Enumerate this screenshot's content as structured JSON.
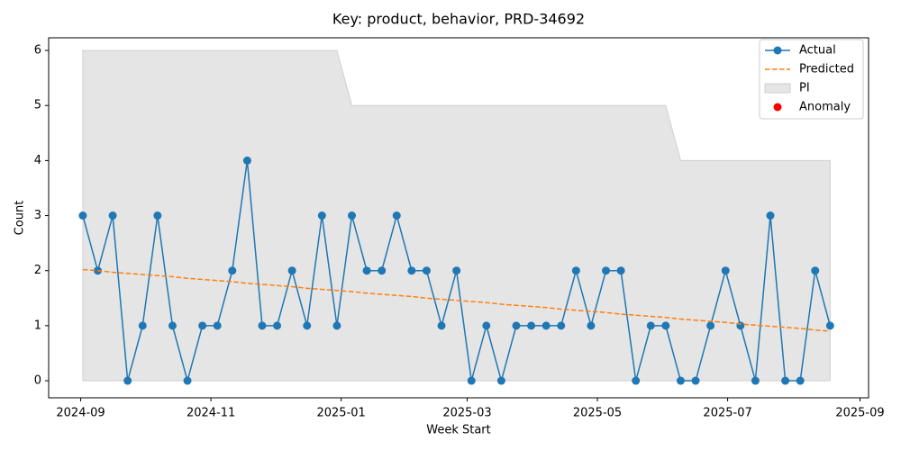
{
  "chart_data": {
    "type": "line",
    "title": "Key: product, behavior, PRD-34692",
    "xlabel": "Week Start",
    "ylabel": "Count",
    "x": [
      "2024-09-02",
      "2024-09-09",
      "2024-09-16",
      "2024-09-23",
      "2024-09-30",
      "2024-10-07",
      "2024-10-14",
      "2024-10-21",
      "2024-10-28",
      "2024-11-04",
      "2024-11-11",
      "2024-11-18",
      "2024-11-25",
      "2024-12-02",
      "2024-12-09",
      "2024-12-16",
      "2024-12-23",
      "2024-12-30",
      "2025-01-06",
      "2025-01-13",
      "2025-01-20",
      "2025-01-27",
      "2025-02-03",
      "2025-02-10",
      "2025-02-17",
      "2025-02-24",
      "2025-03-03",
      "2025-03-10",
      "2025-03-17",
      "2025-03-24",
      "2025-03-31",
      "2025-04-07",
      "2025-04-14",
      "2025-04-21",
      "2025-04-28",
      "2025-05-05",
      "2025-05-12",
      "2025-05-19",
      "2025-05-26",
      "2025-06-02",
      "2025-06-09",
      "2025-06-16",
      "2025-06-23",
      "2025-06-30",
      "2025-07-07",
      "2025-07-14",
      "2025-07-21",
      "2025-07-28",
      "2025-08-04",
      "2025-08-11",
      "2025-08-18"
    ],
    "series": [
      {
        "name": "Actual",
        "color": "#1f77b4",
        "style": "solid",
        "marker": true,
        "values": [
          3,
          2,
          3,
          0,
          1,
          3,
          1,
          0,
          1,
          1,
          2,
          4,
          1,
          1,
          2,
          1,
          3,
          1,
          3,
          2,
          2,
          3,
          2,
          2,
          1,
          2,
          0,
          1,
          0,
          1,
          1,
          1,
          1,
          2,
          1,
          2,
          2,
          0,
          1,
          1,
          0,
          0,
          1,
          2,
          1,
          0,
          3,
          0,
          0,
          2,
          1
        ]
      },
      {
        "name": "Predicted",
        "color": "#ff7f0e",
        "style": "dashed",
        "marker": false,
        "values": [
          2.02,
          2.0,
          1.97,
          1.95,
          1.93,
          1.91,
          1.89,
          1.86,
          1.84,
          1.82,
          1.8,
          1.77,
          1.75,
          1.73,
          1.71,
          1.68,
          1.66,
          1.64,
          1.62,
          1.59,
          1.57,
          1.55,
          1.53,
          1.5,
          1.48,
          1.46,
          1.44,
          1.42,
          1.39,
          1.37,
          1.35,
          1.33,
          1.3,
          1.28,
          1.26,
          1.24,
          1.21,
          1.19,
          1.17,
          1.15,
          1.12,
          1.1,
          1.08,
          1.06,
          1.03,
          1.01,
          0.99,
          0.97,
          0.95,
          0.92,
          0.9
        ]
      },
      {
        "name": "PI",
        "color": "#e5e5e5",
        "style": "band",
        "lower": [
          0,
          0,
          0,
          0,
          0,
          0,
          0,
          0,
          0,
          0,
          0,
          0,
          0,
          0,
          0,
          0,
          0,
          0,
          0,
          0,
          0,
          0,
          0,
          0,
          0,
          0,
          0,
          0,
          0,
          0,
          0,
          0,
          0,
          0,
          0,
          0,
          0,
          0,
          0,
          0,
          0,
          0,
          0,
          0,
          0,
          0,
          0,
          0,
          0,
          0,
          0
        ],
        "upper": [
          6,
          6,
          6,
          6,
          6,
          6,
          6,
          6,
          6,
          6,
          6,
          6,
          6,
          6,
          6,
          6,
          6,
          6,
          5,
          5,
          5,
          5,
          5,
          5,
          5,
          5,
          5,
          5,
          5,
          5,
          5,
          5,
          5,
          5,
          5,
          5,
          5,
          5,
          5,
          5,
          4,
          4,
          4,
          4,
          4,
          4,
          4,
          4,
          4,
          4,
          4
        ]
      },
      {
        "name": "Anomaly",
        "color": "#ff0000",
        "style": "points",
        "marker": true,
        "values": [
          null,
          null,
          null,
          null,
          null,
          null,
          null,
          null,
          null,
          null,
          null,
          null,
          null,
          null,
          null,
          null,
          null,
          null,
          null,
          null,
          null,
          null,
          null,
          null,
          null,
          null,
          null,
          null,
          null,
          null,
          null,
          null,
          null,
          null,
          null,
          null,
          null,
          null,
          null,
          null,
          null,
          null,
          null,
          null,
          null,
          null,
          null,
          null,
          null,
          null,
          null
        ]
      }
    ],
    "xlim": [
      "2024-08-17",
      "2025-09-05"
    ],
    "xticks": [
      "2024-09",
      "2024-11",
      "2025-01",
      "2025-03",
      "2025-05",
      "2025-07",
      "2025-09"
    ],
    "ylim": [
      -0.31,
      6.23
    ],
    "yticks": [
      0,
      1,
      2,
      3,
      4,
      5,
      6
    ],
    "grid": false,
    "legend": "upper right"
  }
}
